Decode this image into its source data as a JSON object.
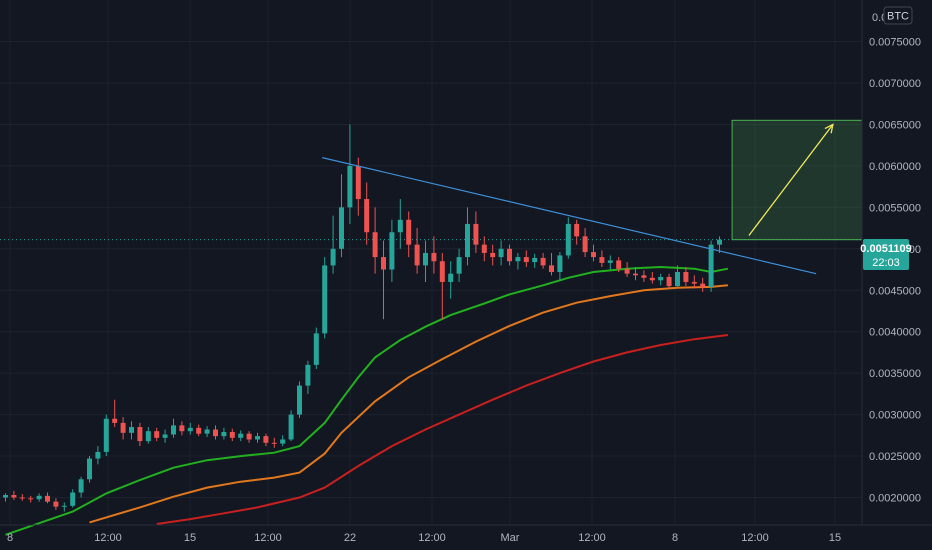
{
  "chart_data": {
    "type": "line",
    "symbol_badge": "BTC",
    "y_ticks": [
      "0.0020000",
      "0.0025000",
      "0.0030000",
      "0.0035000",
      "0.0040000",
      "0.0045000",
      "0.0050000",
      "0.0055000",
      "0.0060000",
      "0.0065000",
      "0.0070000",
      "0.0075000",
      "0.0080000"
    ],
    "y_top_partial": "0.0",
    "ylim": [
      0.00175,
      0.0083
    ],
    "x_ticks": [
      "8",
      "12:00",
      "15",
      "12:00",
      "22",
      "12:00",
      "Mar",
      "12:00",
      "8",
      "12:00",
      "15"
    ],
    "price_last": "0.0051109",
    "countdown": "22:03",
    "candles": [
      [
        0.002,
        0.00205,
        0.00195,
        0.00203
      ],
      [
        0.00203,
        0.00208,
        0.00197,
        0.002
      ],
      [
        0.002,
        0.00204,
        0.00196,
        0.00199
      ],
      [
        0.00199,
        0.00202,
        0.00194,
        0.00198
      ],
      [
        0.00198,
        0.00205,
        0.00195,
        0.00202
      ],
      [
        0.00202,
        0.00206,
        0.00193,
        0.00195
      ],
      [
        0.00195,
        0.00199,
        0.00185,
        0.00189
      ],
      [
        0.00189,
        0.00194,
        0.00183,
        0.0019
      ],
      [
        0.0019,
        0.0021,
        0.00188,
        0.00206
      ],
      [
        0.00206,
        0.00225,
        0.002,
        0.00222
      ],
      [
        0.00222,
        0.0025,
        0.00218,
        0.00247
      ],
      [
        0.00247,
        0.00262,
        0.0024,
        0.00255
      ],
      [
        0.00255,
        0.003,
        0.0025,
        0.00295
      ],
      [
        0.00295,
        0.00318,
        0.00285,
        0.0029
      ],
      [
        0.0029,
        0.00297,
        0.0027,
        0.00278
      ],
      [
        0.00278,
        0.00292,
        0.0027,
        0.00285
      ],
      [
        0.00285,
        0.0029,
        0.00262,
        0.00268
      ],
      [
        0.00268,
        0.00285,
        0.00265,
        0.0028
      ],
      [
        0.0028,
        0.00284,
        0.00268,
        0.00272
      ],
      [
        0.00272,
        0.00282,
        0.00266,
        0.00276
      ],
      [
        0.00276,
        0.00295,
        0.00272,
        0.00287
      ],
      [
        0.00287,
        0.00292,
        0.00275,
        0.0028
      ],
      [
        0.0028,
        0.0029,
        0.00276,
        0.00284
      ],
      [
        0.00284,
        0.00288,
        0.00274,
        0.00277
      ],
      [
        0.00277,
        0.00286,
        0.00273,
        0.00282
      ],
      [
        0.00282,
        0.00287,
        0.0027,
        0.00274
      ],
      [
        0.00274,
        0.00284,
        0.0027,
        0.00279
      ],
      [
        0.00279,
        0.00283,
        0.00268,
        0.00272
      ],
      [
        0.00272,
        0.00281,
        0.00268,
        0.00277
      ],
      [
        0.00277,
        0.0028,
        0.00266,
        0.0027
      ],
      [
        0.0027,
        0.00278,
        0.00266,
        0.00274
      ],
      [
        0.00274,
        0.00277,
        0.00262,
        0.00266
      ],
      [
        0.00266,
        0.00272,
        0.0026,
        0.00265
      ],
      [
        0.00265,
        0.00275,
        0.00262,
        0.0027
      ],
      [
        0.0027,
        0.00305,
        0.00268,
        0.003
      ],
      [
        0.003,
        0.0034,
        0.00296,
        0.00335
      ],
      [
        0.00335,
        0.00365,
        0.00325,
        0.0036
      ],
      [
        0.0036,
        0.00405,
        0.00355,
        0.00398
      ],
      [
        0.00398,
        0.0049,
        0.00392,
        0.0048
      ],
      [
        0.0048,
        0.0054,
        0.0047,
        0.005
      ],
      [
        0.005,
        0.0059,
        0.0049,
        0.0055
      ],
      [
        0.0055,
        0.0065,
        0.0053,
        0.006
      ],
      [
        0.006,
        0.0061,
        0.0054,
        0.0056
      ],
      [
        0.0056,
        0.0058,
        0.00505,
        0.0052
      ],
      [
        0.0052,
        0.0055,
        0.0047,
        0.0049
      ],
      [
        0.0049,
        0.0051,
        0.00415,
        0.00475
      ],
      [
        0.00475,
        0.00535,
        0.0046,
        0.0052
      ],
      [
        0.0052,
        0.0056,
        0.005,
        0.00535
      ],
      [
        0.00535,
        0.00545,
        0.0049,
        0.00505
      ],
      [
        0.00505,
        0.00525,
        0.0047,
        0.0048
      ],
      [
        0.0048,
        0.0051,
        0.0046,
        0.00495
      ],
      [
        0.00495,
        0.00515,
        0.0047,
        0.00485
      ],
      [
        0.00485,
        0.00495,
        0.00415,
        0.0046
      ],
      [
        0.0046,
        0.00485,
        0.0044,
        0.0047
      ],
      [
        0.0047,
        0.005,
        0.0046,
        0.0049
      ],
      [
        0.0049,
        0.0055,
        0.0048,
        0.0053
      ],
      [
        0.0053,
        0.00545,
        0.00495,
        0.00505
      ],
      [
        0.00505,
        0.00515,
        0.00485,
        0.00495
      ],
      [
        0.00495,
        0.00505,
        0.0048,
        0.0049
      ],
      [
        0.0049,
        0.0051,
        0.0048,
        0.005
      ],
      [
        0.005,
        0.00505,
        0.0048,
        0.00485
      ],
      [
        0.00485,
        0.00495,
        0.00475,
        0.0049
      ],
      [
        0.0049,
        0.00498,
        0.00478,
        0.00484
      ],
      [
        0.00484,
        0.00494,
        0.00477,
        0.00489
      ],
      [
        0.00489,
        0.00495,
        0.00476,
        0.0048
      ],
      [
        0.0048,
        0.00495,
        0.00468,
        0.00472
      ],
      [
        0.00472,
        0.00496,
        0.00462,
        0.00492
      ],
      [
        0.00492,
        0.00538,
        0.00488,
        0.0053
      ],
      [
        0.0053,
        0.00535,
        0.00505,
        0.00515
      ],
      [
        0.00515,
        0.00525,
        0.0049,
        0.00496
      ],
      [
        0.00496,
        0.00505,
        0.00485,
        0.0049
      ],
      [
        0.0049,
        0.00498,
        0.00478,
        0.00483
      ],
      [
        0.00483,
        0.00492,
        0.00475,
        0.00486
      ],
      [
        0.00486,
        0.0049,
        0.00472,
        0.00476
      ],
      [
        0.00476,
        0.00484,
        0.00466,
        0.0047
      ],
      [
        0.0047,
        0.00478,
        0.00462,
        0.00468
      ],
      [
        0.00468,
        0.00474,
        0.0046,
        0.00465
      ],
      [
        0.00465,
        0.00472,
        0.00458,
        0.00462
      ],
      [
        0.00462,
        0.0047,
        0.00456,
        0.00466
      ],
      [
        0.00466,
        0.0047,
        0.00452,
        0.00455
      ],
      [
        0.00455,
        0.0048,
        0.00452,
        0.00472
      ],
      [
        0.00472,
        0.00478,
        0.00455,
        0.0046
      ],
      [
        0.0046,
        0.00468,
        0.00452,
        0.00458
      ],
      [
        0.00458,
        0.00465,
        0.00448,
        0.00454
      ],
      [
        0.00454,
        0.0051,
        0.00448,
        0.00505
      ],
      [
        0.00505,
        0.00515,
        0.00495,
        0.00511
      ]
    ],
    "moving_averages": [
      {
        "color": "#22b01f",
        "values": [
          [
            0,
            0.00155
          ],
          [
            8,
            0.00183
          ],
          [
            12,
            0.00205
          ],
          [
            16,
            0.00221
          ],
          [
            20,
            0.00236
          ],
          [
            24,
            0.00245
          ],
          [
            28,
            0.0025
          ],
          [
            32,
            0.00254
          ],
          [
            35,
            0.00262
          ],
          [
            38,
            0.0029
          ],
          [
            40,
            0.00318
          ],
          [
            42,
            0.00345
          ],
          [
            44,
            0.00369
          ],
          [
            47,
            0.0039
          ],
          [
            50,
            0.00406
          ],
          [
            53,
            0.0042
          ],
          [
            57,
            0.00434
          ],
          [
            60,
            0.00445
          ],
          [
            64,
            0.00456
          ],
          [
            67,
            0.00465
          ],
          [
            70,
            0.00472
          ],
          [
            74,
            0.00476
          ],
          [
            78,
            0.00478
          ],
          [
            82,
            0.00476
          ],
          [
            84,
            0.00472
          ],
          [
            86,
            0.00476
          ]
        ]
      },
      {
        "color": "#e2781e",
        "values": [
          [
            10,
            0.0017
          ],
          [
            16,
            0.00188
          ],
          [
            20,
            0.00201
          ],
          [
            24,
            0.00212
          ],
          [
            28,
            0.00219
          ],
          [
            32,
            0.00224
          ],
          [
            35,
            0.0023
          ],
          [
            38,
            0.00253
          ],
          [
            40,
            0.00278
          ],
          [
            44,
            0.00316
          ],
          [
            48,
            0.00345
          ],
          [
            52,
            0.00367
          ],
          [
            56,
            0.00388
          ],
          [
            60,
            0.00407
          ],
          [
            64,
            0.00423
          ],
          [
            68,
            0.00435
          ],
          [
            72,
            0.00443
          ],
          [
            76,
            0.0045
          ],
          [
            80,
            0.00453
          ],
          [
            84,
            0.00454
          ],
          [
            86,
            0.00456
          ]
        ]
      },
      {
        "color": "#c8201e",
        "values": [
          [
            18,
            0.00168
          ],
          [
            22,
            0.00174
          ],
          [
            26,
            0.00181
          ],
          [
            30,
            0.00188
          ],
          [
            35,
            0.002
          ],
          [
            38,
            0.00212
          ],
          [
            42,
            0.00238
          ],
          [
            46,
            0.00262
          ],
          [
            50,
            0.00282
          ],
          [
            54,
            0.003
          ],
          [
            58,
            0.00318
          ],
          [
            62,
            0.00335
          ],
          [
            66,
            0.0035
          ],
          [
            70,
            0.00364
          ],
          [
            74,
            0.00375
          ],
          [
            78,
            0.00384
          ],
          [
            82,
            0.00391
          ],
          [
            86,
            0.00396
          ]
        ]
      }
    ],
    "trendline": {
      "color": "#3d8fd8",
      "from": [
        37.7,
        0.0061
      ],
      "to": [
        96.5,
        0.0047
      ]
    },
    "projection_box": {
      "from_x": 86.5,
      "to_x": 104,
      "y_low": 0.00511,
      "y_high": 0.00655,
      "color": "#4caf50"
    },
    "projection_arrow": {
      "from": [
        88.5,
        0.00516
      ],
      "to": [
        98.5,
        0.0065
      ],
      "color": "#f2e85c"
    },
    "colors": {
      "up": "#26a69a",
      "down": "#ef5350",
      "background": "#131722",
      "grid": "#1e222d",
      "price_tag": "#26a69a"
    }
  }
}
